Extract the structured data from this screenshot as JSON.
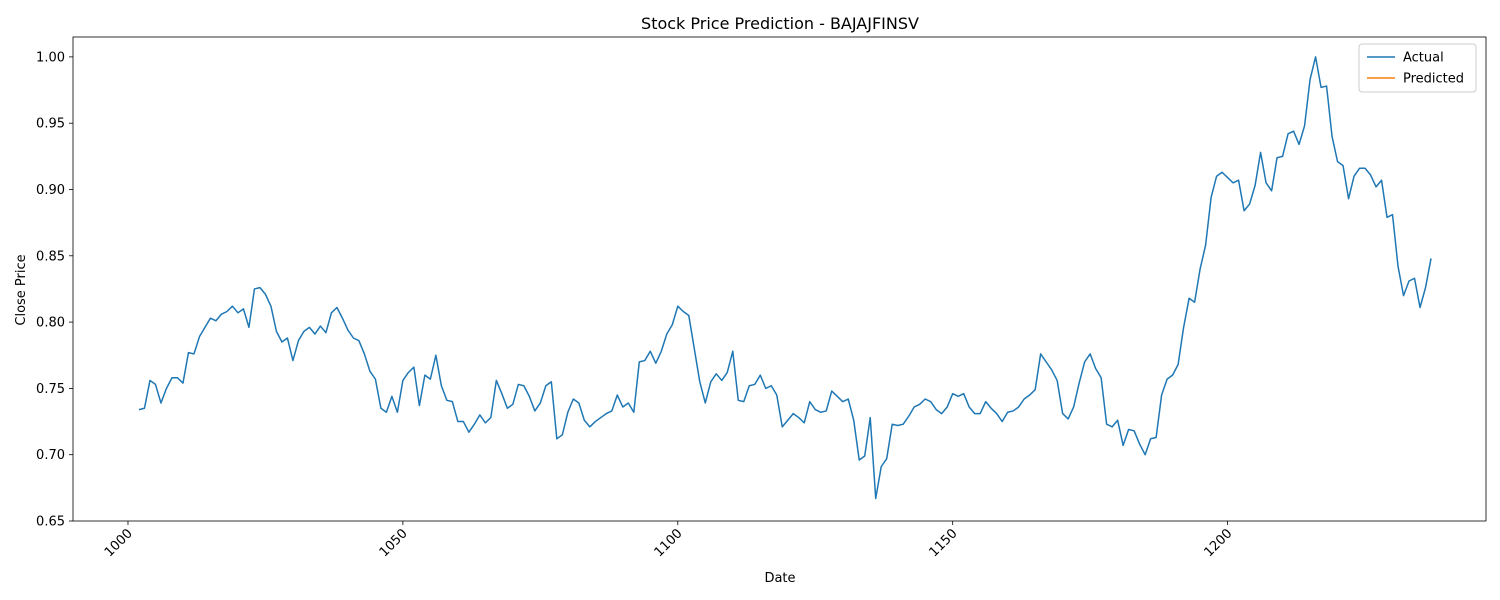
{
  "chart_data": {
    "type": "line",
    "title": "Stock Price Prediction - BAJAJFINSV",
    "xlabel": "Date",
    "ylabel": "Close Price",
    "xlim": [
      990,
      1247
    ],
    "ylim": [
      0.65,
      1.015
    ],
    "x_ticks": [
      1000,
      1050,
      1100,
      1150,
      1200
    ],
    "x_tick_labels": [
      "1000",
      "1050",
      "1100",
      "1150",
      "1200"
    ],
    "y_ticks": [
      0.65,
      0.7,
      0.75,
      0.8,
      0.85,
      0.9,
      0.95,
      1.0
    ],
    "y_tick_labels": [
      "0.65",
      "0.70",
      "0.75",
      "0.80",
      "0.85",
      "0.90",
      "0.95",
      "1.00"
    ],
    "grid": false,
    "legend_position": "top-right",
    "series": [
      {
        "name": "Actual",
        "color": "#1f77b4",
        "x_start": 1002,
        "values": [
          0.734,
          0.735,
          0.756,
          0.753,
          0.739,
          0.75,
          0.758,
          0.758,
          0.754,
          0.777,
          0.776,
          0.789,
          0.796,
          0.803,
          0.801,
          0.806,
          0.808,
          0.812,
          0.807,
          0.81,
          0.796,
          0.825,
          0.826,
          0.821,
          0.812,
          0.793,
          0.785,
          0.788,
          0.771,
          0.786,
          0.793,
          0.796,
          0.791,
          0.797,
          0.792,
          0.807,
          0.811,
          0.803,
          0.794,
          0.788,
          0.786,
          0.776,
          0.763,
          0.757,
          0.735,
          0.732,
          0.744,
          0.732,
          0.756,
          0.762,
          0.766,
          0.737,
          0.76,
          0.757,
          0.775,
          0.752,
          0.741,
          0.74,
          0.725,
          0.725,
          0.717,
          0.723,
          0.73,
          0.724,
          0.728,
          0.756,
          0.746,
          0.735,
          0.738,
          0.753,
          0.752,
          0.744,
          0.733,
          0.739,
          0.752,
          0.755,
          0.712,
          0.715,
          0.732,
          0.742,
          0.739,
          0.726,
          0.721,
          0.725,
          0.728,
          0.731,
          0.733,
          0.745,
          0.736,
          0.739,
          0.732,
          0.77,
          0.771,
          0.778,
          0.769,
          0.778,
          0.791,
          0.798,
          0.812,
          0.808,
          0.805,
          0.78,
          0.755,
          0.739,
          0.755,
          0.761,
          0.756,
          0.762,
          0.778,
          0.741,
          0.74,
          0.752,
          0.753,
          0.76,
          0.75,
          0.752,
          0.745,
          0.721,
          0.726,
          0.731,
          0.728,
          0.724,
          0.74,
          0.734,
          0.732,
          0.733,
          0.748,
          0.744,
          0.74,
          0.742,
          0.726,
          0.696,
          0.699,
          0.728,
          0.667,
          0.691,
          0.697,
          0.723,
          0.722,
          0.723,
          0.729,
          0.736,
          0.738,
          0.742,
          0.74,
          0.734,
          0.731,
          0.736,
          0.746,
          0.744,
          0.746,
          0.736,
          0.731,
          0.731,
          0.74,
          0.735,
          0.731,
          0.725,
          0.732,
          0.733,
          0.736,
          0.742,
          0.745,
          0.749,
          0.776,
          0.77,
          0.764,
          0.756,
          0.731,
          0.727,
          0.736,
          0.754,
          0.77,
          0.776,
          0.765,
          0.758,
          0.723,
          0.721,
          0.726,
          0.707,
          0.719,
          0.718,
          0.708,
          0.7,
          0.712,
          0.713,
          0.745,
          0.757,
          0.76,
          0.768,
          0.796,
          0.818,
          0.815,
          0.84,
          0.858,
          0.894,
          0.91,
          0.913,
          0.909,
          0.905,
          0.907,
          0.884,
          0.889,
          0.903,
          0.928,
          0.905,
          0.899,
          0.924,
          0.925,
          0.942,
          0.944,
          0.934,
          0.948,
          0.983,
          1.0,
          0.977,
          0.978,
          0.94,
          0.921,
          0.918,
          0.893,
          0.91,
          0.916,
          0.916,
          0.911,
          0.902,
          0.907,
          0.879,
          0.881,
          0.842,
          0.82,
          0.831,
          0.833,
          0.811,
          0.826,
          0.848
        ]
      },
      {
        "name": "Predicted",
        "color": "#ff7f0e",
        "x_start": 1002,
        "values": []
      }
    ]
  }
}
